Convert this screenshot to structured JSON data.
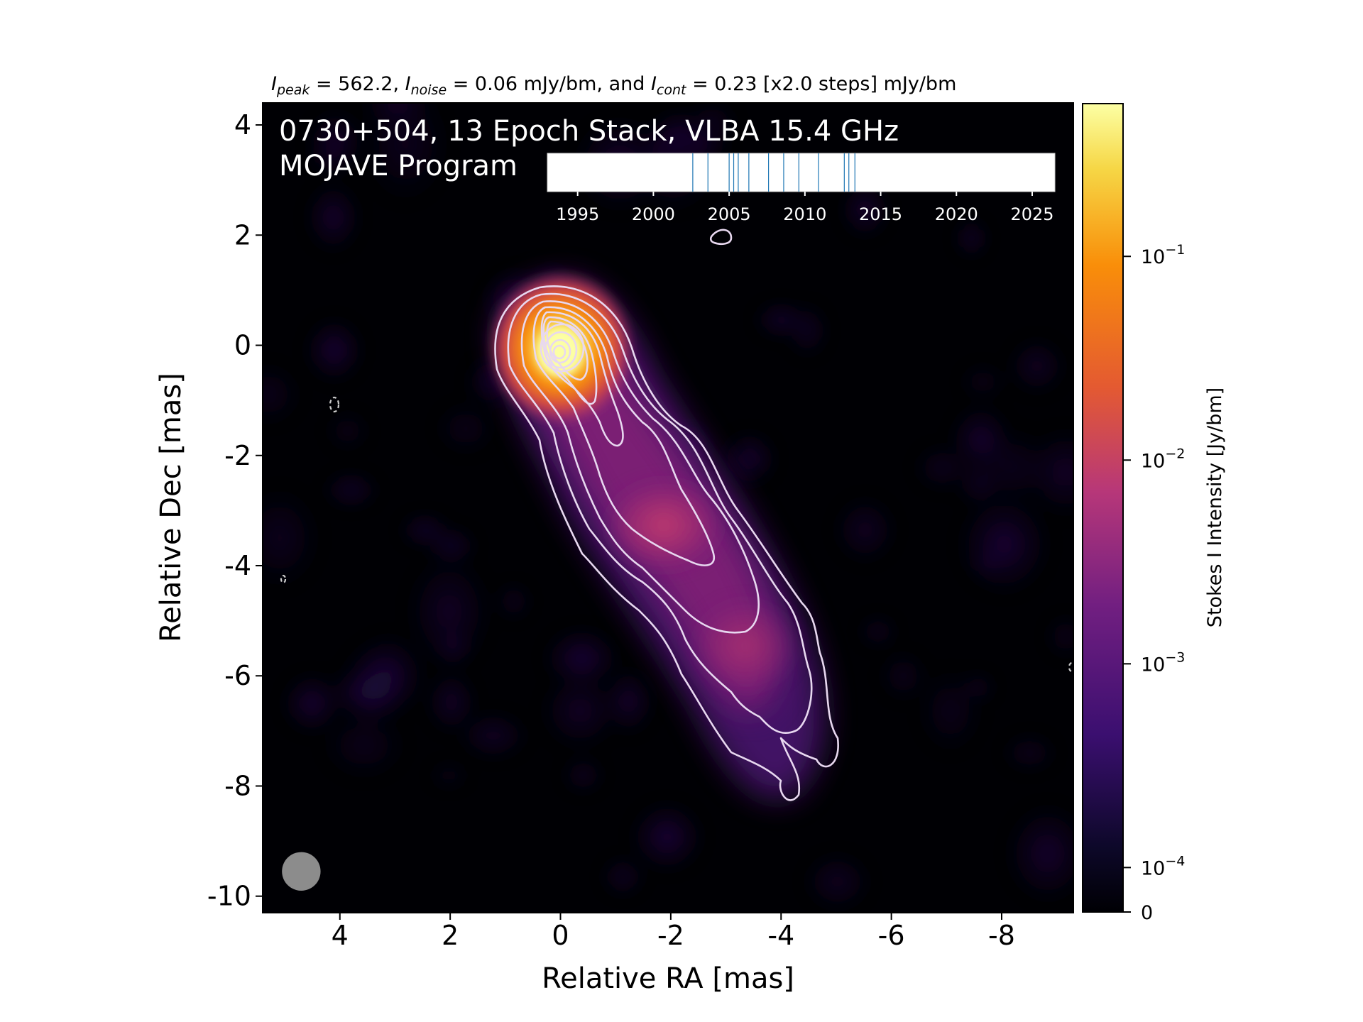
{
  "chart_data": {
    "type": "heatmap",
    "header": {
      "peak_sym": "I",
      "peak_sub": "peak",
      "peak_val": " = 562.2, ",
      "noise_sym": "I",
      "noise_sub": "noise",
      "noise_val": " = 0.06 mJy/bm, and ",
      "cont_sym": "I",
      "cont_sub": "cont",
      "cont_val": " = 0.23 [x2.0 steps] mJy/bm"
    },
    "title_line1": "0730+504, 13 Epoch Stack, VLBA 15.4 GHz",
    "title_line2": "MOJAVE Program",
    "xlabel": "Relative RA [mas]",
    "ylabel": "Relative Dec [mas]",
    "xlim": [
      5.4,
      -9.3
    ],
    "ylim": [
      -10.3,
      4.4
    ],
    "x_ticks": [
      4,
      2,
      0,
      -2,
      -4,
      -6,
      -8
    ],
    "x_tick_labels": [
      "4",
      "2",
      "0",
      "-2",
      "-4",
      "-6",
      "-8"
    ],
    "y_ticks": [
      4,
      2,
      0,
      -2,
      -4,
      -6,
      -8,
      -10
    ],
    "y_tick_labels": [
      "4",
      "2",
      "0",
      "-2",
      "-4",
      "-6",
      "-8",
      "-10"
    ],
    "colorbar": {
      "label": "Stokes I Intensity [Jy/bm]",
      "scale": "log",
      "range": [
        0,
        0.5622
      ],
      "ticks": [
        {
          "value": 0.1,
          "base": "10",
          "exp": "−1"
        },
        {
          "value": 0.01,
          "base": "10",
          "exp": "−2"
        },
        {
          "value": 0.001,
          "base": "10",
          "exp": "−3"
        },
        {
          "value": 0.0001,
          "base": "10",
          "exp": "−4"
        },
        {
          "value": 0,
          "base": "0",
          "exp": ""
        }
      ]
    },
    "epoch_timeline": {
      "range": [
        1993,
        2026.5
      ],
      "tick_values": [
        1995,
        2000,
        2005,
        2010,
        2015,
        2020,
        2025
      ],
      "tick_labels": [
        "1995",
        "2000",
        "2005",
        "2010",
        "2015",
        "2020",
        "2025"
      ],
      "epochs": [
        2002.6,
        2003.6,
        2005.0,
        2005.3,
        2005.6,
        2006.3,
        2007.6,
        2008.6,
        2009.6,
        2010.9,
        2012.6,
        2012.9,
        2013.3
      ],
      "epoch_color": "#1f77b4"
    },
    "beam": {
      "ra": 4.7,
      "dec": -9.55,
      "diameter_mas": 0.7
    },
    "colormap": "inferno",
    "contour_color": "#e8d8f0"
  }
}
